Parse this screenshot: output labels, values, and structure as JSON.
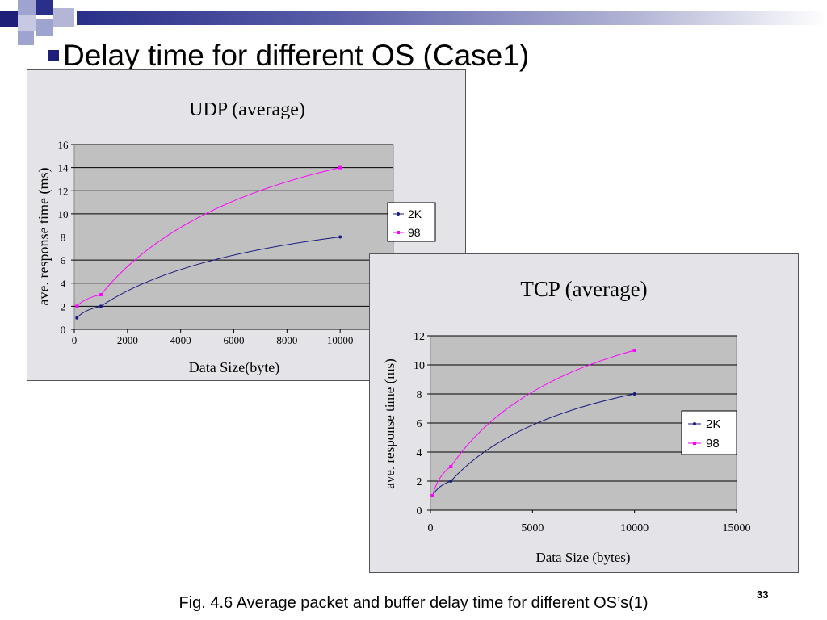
{
  "slide": {
    "title": "Delay time for different OS (Case1)",
    "caption": "Fig. 4.6 Average packet and buffer delay time for different OS’s(1)",
    "slide_number": "33"
  },
  "colors": {
    "series_2k": "#1a1a80",
    "series_98": "#ff00ff",
    "plot_bg": "#c0c0c0",
    "panel_bg": "#e4e4e8"
  },
  "chart_data": [
    {
      "type": "line",
      "title": "UDP (average)",
      "xlabel": "Data Size(byte)",
      "ylabel": "ave. response time (ms)",
      "xlim": [
        0,
        12000
      ],
      "ylim": [
        0,
        16
      ],
      "x_ticks": [
        0,
        2000,
        4000,
        6000,
        8000,
        10000
      ],
      "y_ticks": [
        0,
        2,
        4,
        6,
        8,
        10,
        12,
        14,
        16
      ],
      "grid": true,
      "legend": "right",
      "series": [
        {
          "name": "2K",
          "x": [
            100,
            1000,
            10000
          ],
          "values": [
            1,
            2,
            8
          ]
        },
        {
          "name": "98",
          "x": [
            100,
            1000,
            10000
          ],
          "values": [
            2,
            3,
            14
          ]
        }
      ]
    },
    {
      "type": "line",
      "title": "TCP (average)",
      "xlabel": "Data Size (bytes)",
      "ylabel": "ave. response time (ms)",
      "xlim": [
        0,
        15000
      ],
      "ylim": [
        0,
        12
      ],
      "x_ticks": [
        0,
        5000,
        10000,
        15000
      ],
      "y_ticks": [
        0,
        2,
        4,
        6,
        8,
        10,
        12
      ],
      "grid": true,
      "legend": "right",
      "series": [
        {
          "name": "2K",
          "x": [
            100,
            1000,
            10000
          ],
          "values": [
            1,
            2,
            8
          ]
        },
        {
          "name": "98",
          "x": [
            100,
            1000,
            10000
          ],
          "values": [
            1,
            3,
            11
          ]
        }
      ]
    }
  ]
}
